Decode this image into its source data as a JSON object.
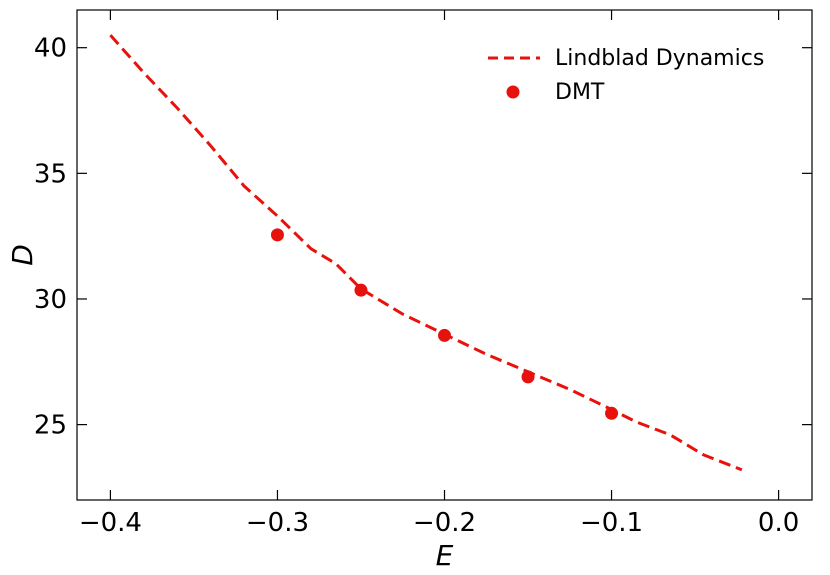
{
  "chart_data": {
    "type": "line",
    "xlabel": "E",
    "ylabel": "D",
    "xlim": [
      -0.42,
      0.02
    ],
    "ylim": [
      22,
      41.5
    ],
    "x_ticks": [
      -0.4,
      -0.3,
      -0.2,
      -0.1,
      0.0
    ],
    "x_tick_labels": [
      "−0.4",
      "−0.3",
      "−0.2",
      "−0.1",
      "0.0"
    ],
    "y_ticks": [
      25,
      30,
      35,
      40
    ],
    "y_tick_labels": [
      "25",
      "30",
      "35",
      "40"
    ],
    "grid": false,
    "legend_position": "top-right",
    "series": [
      {
        "name": "Lindblad Dynamics",
        "style": "dashed-line",
        "color": "#e8120c",
        "x": [
          -0.4,
          -0.38,
          -0.36,
          -0.34,
          -0.32,
          -0.3,
          -0.28,
          -0.265,
          -0.25,
          -0.225,
          -0.2,
          -0.175,
          -0.15,
          -0.125,
          -0.1,
          -0.085,
          -0.065,
          -0.045,
          -0.022
        ],
        "y": [
          40.5,
          39.0,
          37.6,
          36.1,
          34.5,
          33.3,
          32.0,
          31.4,
          30.4,
          29.4,
          28.6,
          27.8,
          27.1,
          26.4,
          25.6,
          25.1,
          24.6,
          23.8,
          23.2
        ]
      },
      {
        "name": "DMT",
        "style": "markers",
        "color": "#e8120c",
        "x": [
          -0.3,
          -0.25,
          -0.2,
          -0.15,
          -0.1
        ],
        "y": [
          32.55,
          30.35,
          28.55,
          26.9,
          25.45
        ]
      }
    ]
  }
}
